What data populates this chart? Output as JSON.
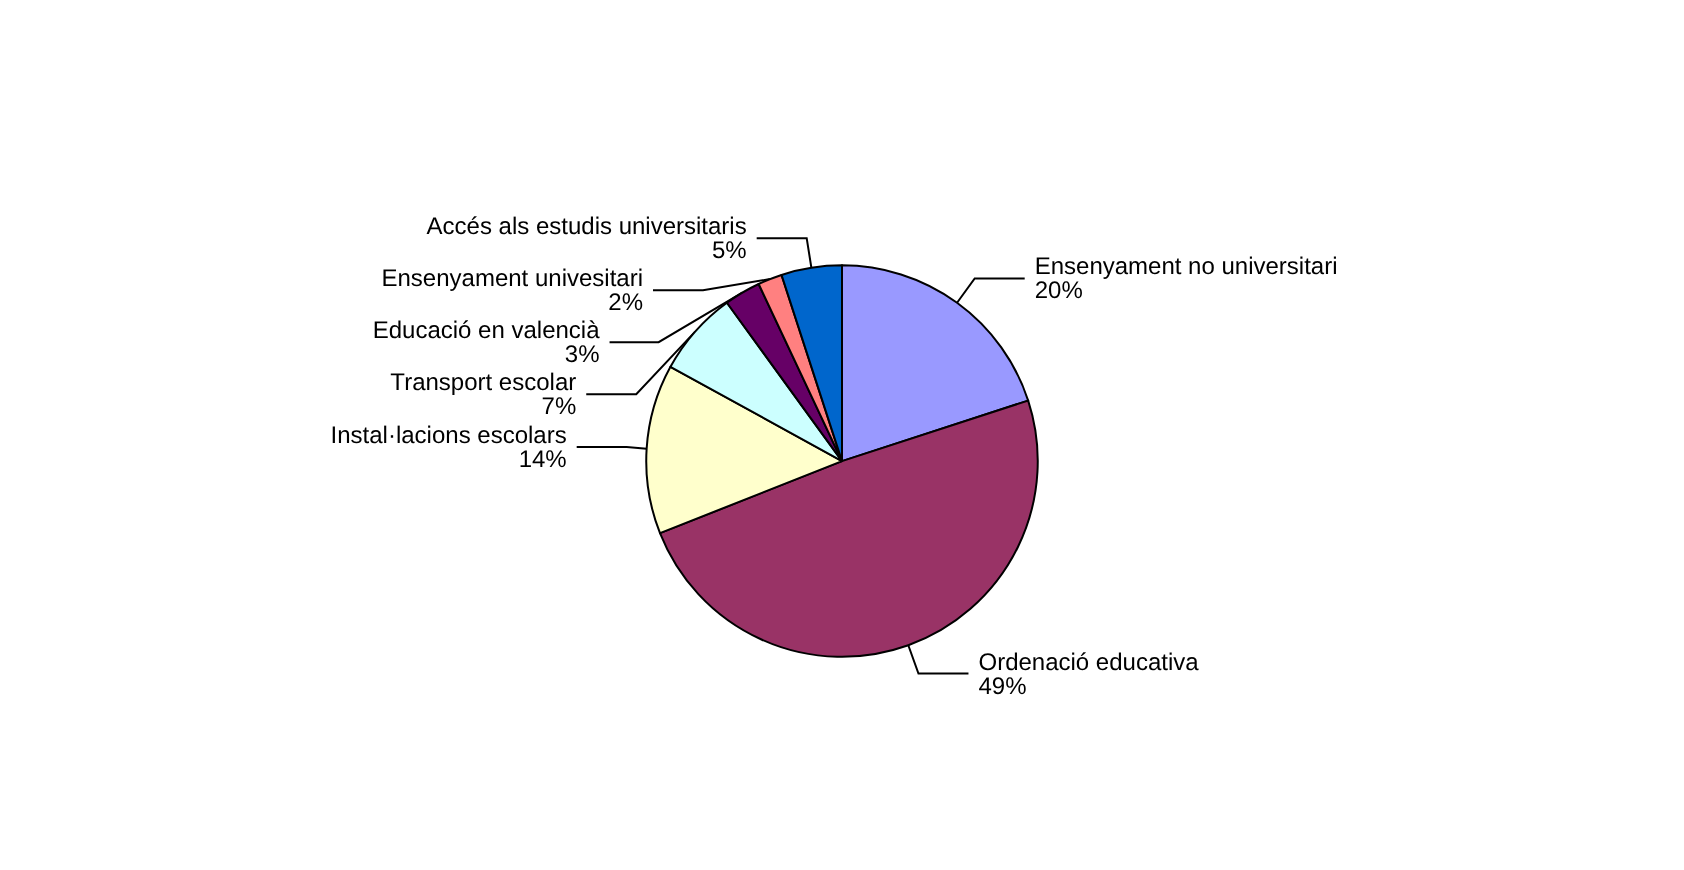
{
  "chart_data": {
    "type": "pie",
    "categories": [
      "Ensenyament no universitari",
      "Ordenació educativa",
      "Instal·lacions escolars",
      "Transport escolar",
      "Educació en valencià",
      "Ensenyament univesitari",
      "Accés als estudis universitaris"
    ],
    "values": [
      20,
      49,
      14,
      7,
      3,
      2,
      5
    ],
    "value_labels": [
      "20%",
      "49%",
      "14%",
      "7%",
      "3%",
      "2%",
      "5%"
    ],
    "colors": [
      "#9999ff",
      "#993366",
      "#ffffcc",
      "#ccffff",
      "#660066",
      "#ff8080",
      "#0066cc"
    ]
  }
}
